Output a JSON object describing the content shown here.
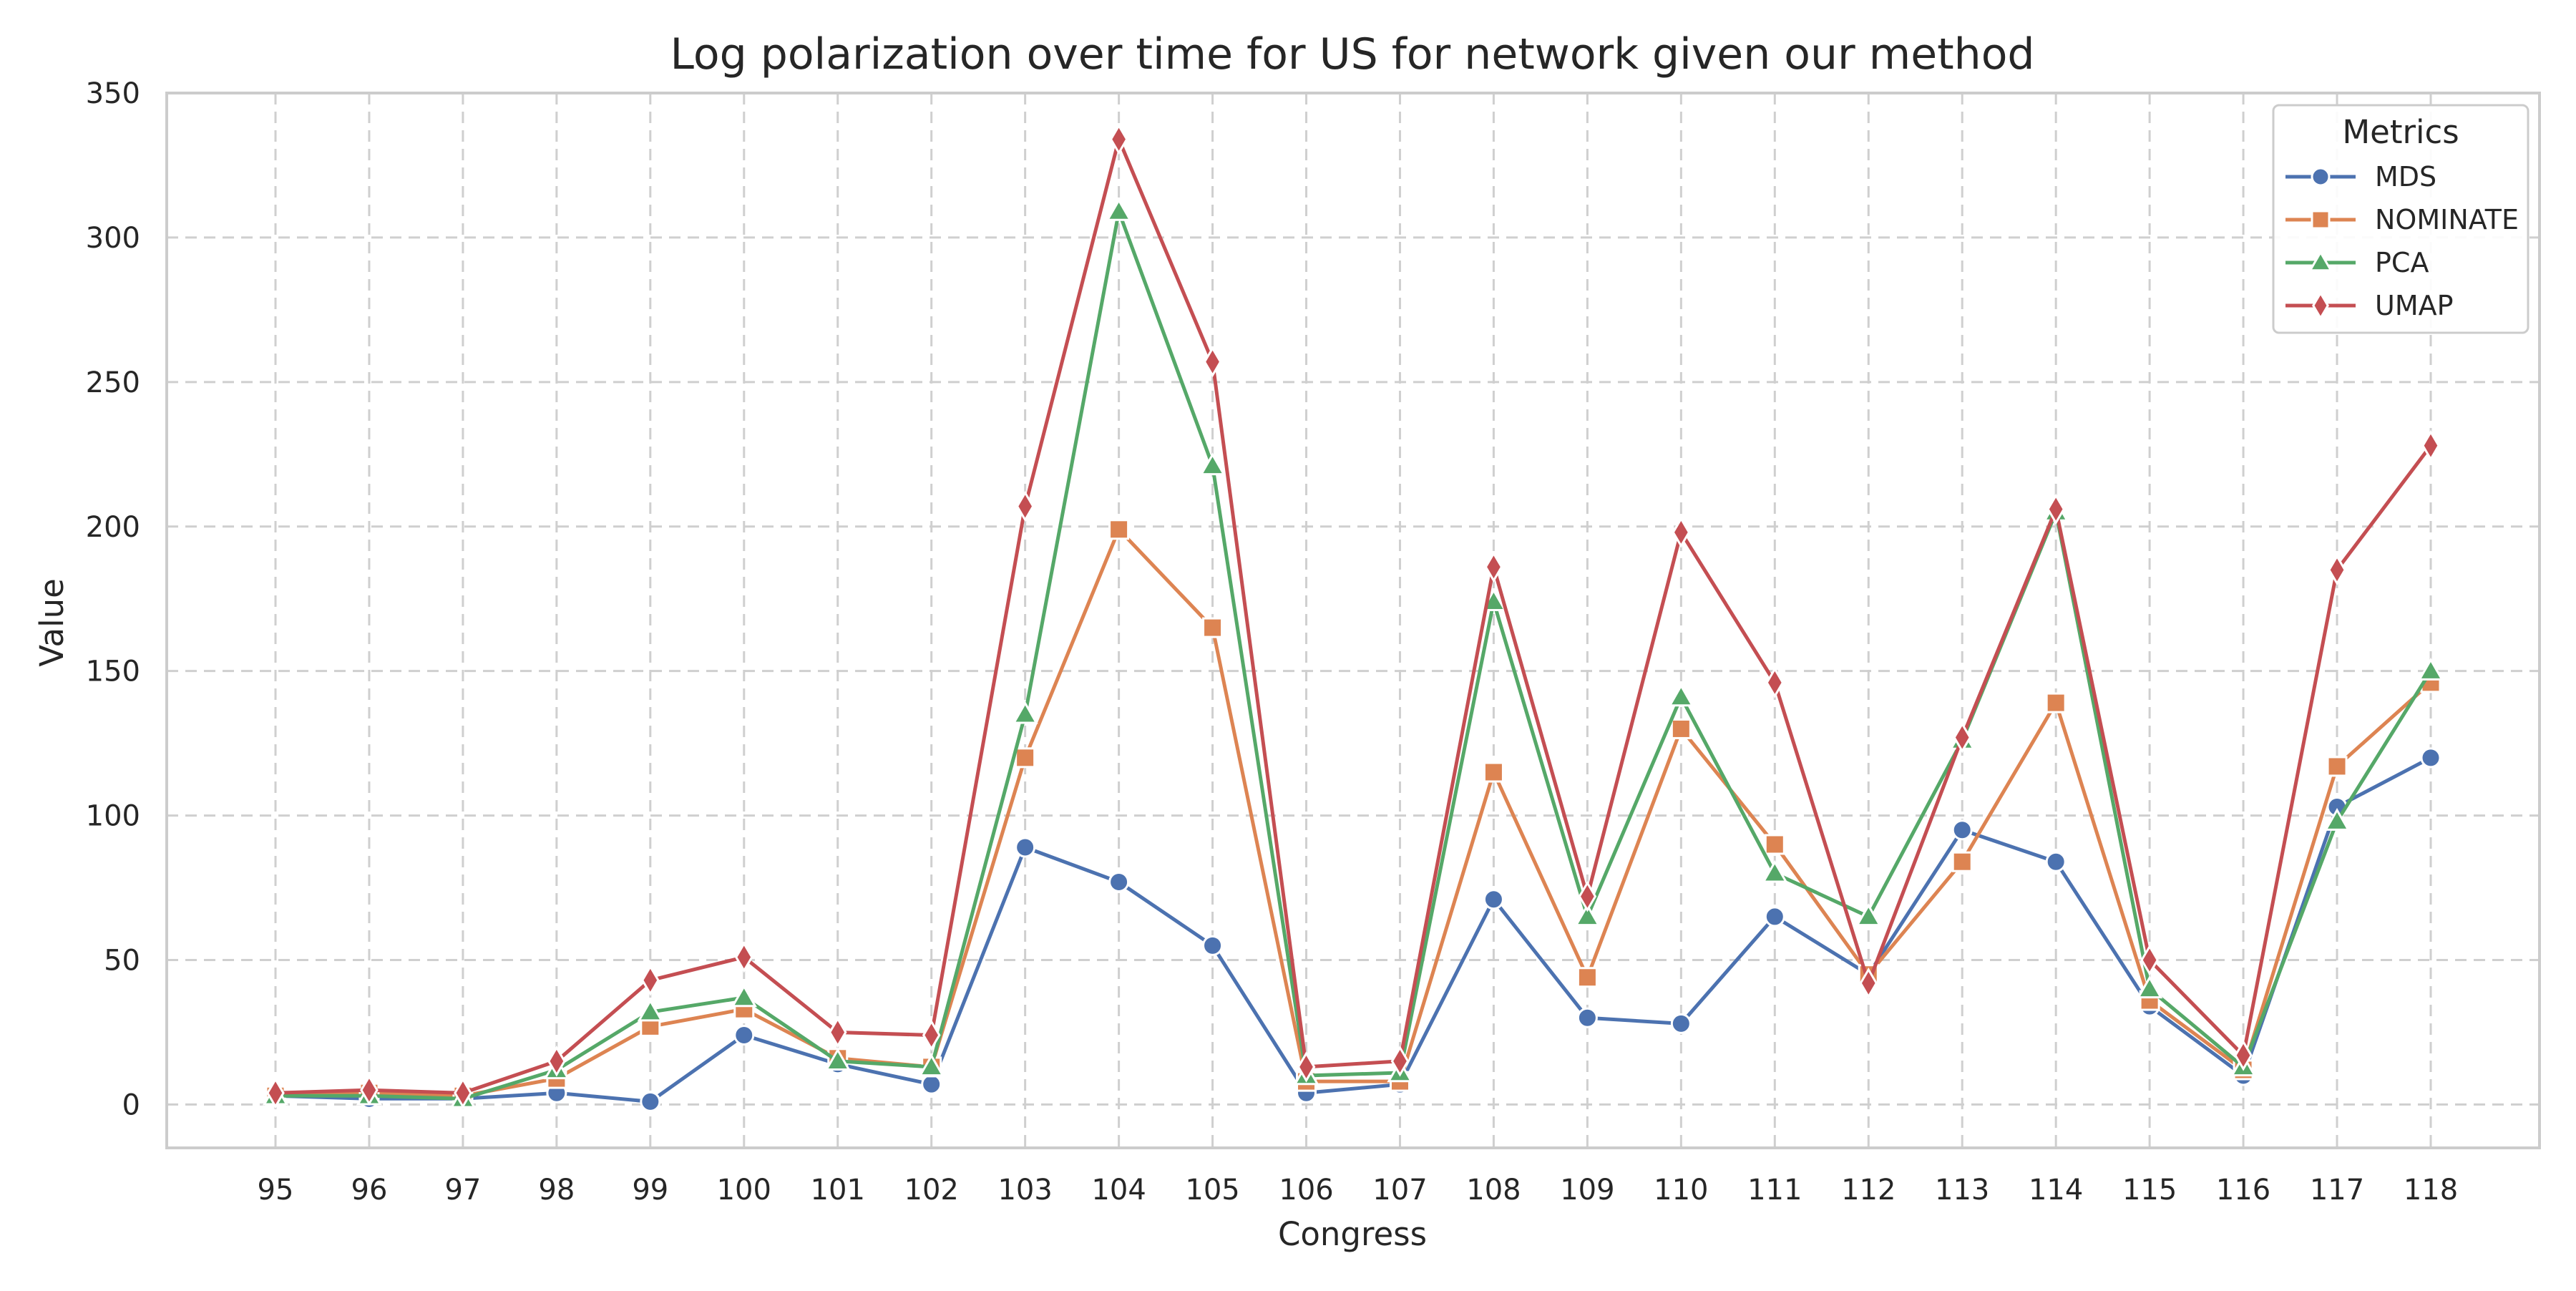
{
  "chart_data": {
    "type": "line",
    "title": "Log polarization over time for US for network given our method",
    "xlabel": "Congress",
    "ylabel": "Value",
    "categories": [
      "95",
      "96",
      "97",
      "98",
      "99",
      "100",
      "101",
      "102",
      "103",
      "104",
      "105",
      "106",
      "107",
      "108",
      "109",
      "110",
      "111",
      "112",
      "113",
      "114",
      "115",
      "116",
      "117",
      "118"
    ],
    "yticks": [
      "0",
      "50",
      "100",
      "150",
      "200",
      "250",
      "300",
      "350"
    ],
    "ylim": [
      -15,
      350
    ],
    "grid": true,
    "legend": {
      "title": "Metrics",
      "placement": "top-right"
    },
    "series": [
      {
        "name": "MDS",
        "color": "#4c72b0",
        "marker": "circle",
        "values": [
          3,
          2,
          2,
          4,
          1,
          24,
          14,
          7,
          89,
          77,
          55,
          4,
          7,
          71,
          30,
          28,
          65,
          45,
          95,
          84,
          34,
          10,
          103,
          120
        ]
      },
      {
        "name": "NOMINATE",
        "color": "#dd8452",
        "marker": "square",
        "values": [
          3,
          4,
          3,
          9,
          27,
          33,
          16,
          13,
          120,
          199,
          165,
          8,
          8,
          115,
          44,
          130,
          90,
          45,
          84,
          139,
          36,
          12,
          117,
          146
        ]
      },
      {
        "name": "PCA",
        "color": "#55a868",
        "marker": "triangle",
        "values": [
          3,
          3,
          2,
          12,
          32,
          37,
          15,
          13,
          135,
          309,
          221,
          10,
          11,
          174,
          65,
          141,
          80,
          65,
          126,
          205,
          40,
          13,
          98,
          150
        ]
      },
      {
        "name": "UMAP",
        "color": "#c44e52",
        "marker": "diamond",
        "values": [
          4,
          5,
          4,
          15,
          43,
          51,
          25,
          24,
          207,
          334,
          257,
          13,
          15,
          186,
          72,
          198,
          146,
          42,
          127,
          206,
          50,
          17,
          185,
          228
        ]
      }
    ]
  }
}
